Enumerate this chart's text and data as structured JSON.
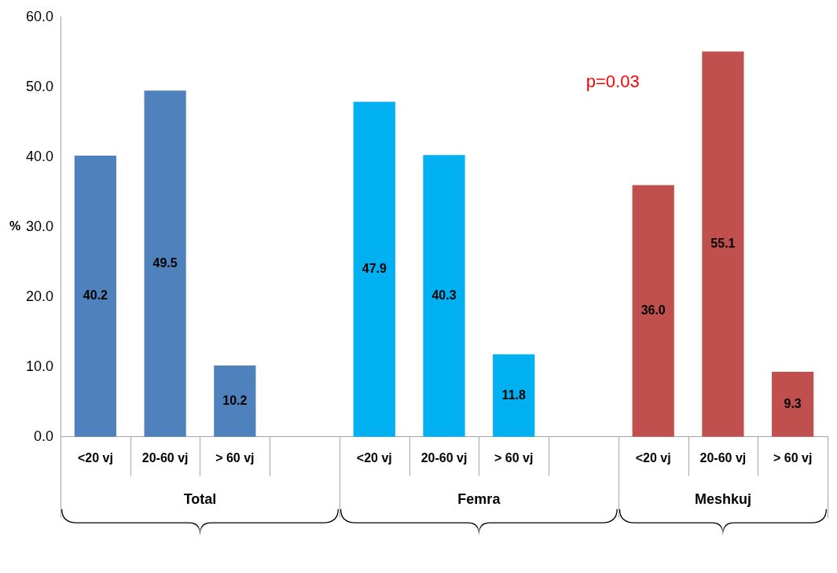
{
  "chart_data": {
    "type": "bar",
    "ylabel": "%",
    "categories": [
      "<20 vj",
      "20-60 vj",
      "> 60 vj",
      null,
      "<20 vj",
      "20-60 vj",
      "> 60 vj",
      null,
      "<20 vj",
      "20-60 vj",
      "> 60 vj"
    ],
    "values": [
      40.2,
      49.5,
      10.2,
      null,
      47.9,
      40.3,
      11.8,
      null,
      36.0,
      55.1,
      9.3
    ],
    "colors": [
      "#4f81bd",
      "#4f81bd",
      "#4f81bd",
      "#4f81bd",
      "#00b0f0",
      "#00b0f0",
      "#00b0f0",
      "#00b0f0",
      "#c0504d",
      "#c0504d",
      "#c0504d"
    ],
    "ylim": [
      0,
      60
    ],
    "yticks": [
      {
        "value": 0,
        "label": "0.0"
      },
      {
        "value": 10,
        "label": "10.0"
      },
      {
        "value": 20,
        "label": "20.0"
      },
      {
        "value": 30,
        "label": "30.0"
      },
      {
        "value": 40,
        "label": "40.0"
      },
      {
        "value": 50,
        "label": "50.0"
      },
      {
        "value": 60,
        "label": "60.0"
      }
    ],
    "annotations": [
      "Total",
      "Femra",
      "Meshkuj",
      "p=0.03"
    ],
    "value_labels": [
      "40.2",
      "49.5",
      "10.2",
      null,
      "47.9",
      "40.3",
      "11.8",
      null,
      "36.0",
      "55.1",
      "9.3"
    ],
    "grid": false,
    "legend": false
  }
}
